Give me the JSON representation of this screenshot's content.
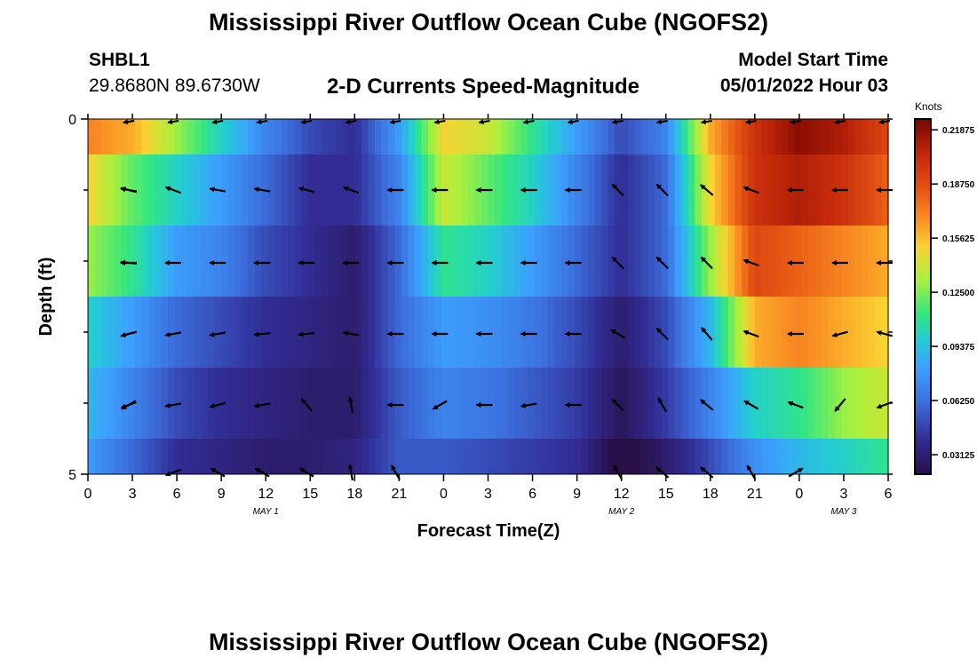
{
  "title": "Mississippi River Outflow Ocean Cube (NGOFS2)",
  "station": {
    "id": "SHBL1",
    "coords": "29.8680N  89.6730W"
  },
  "subtitle": "2-D Currents Speed-Magnitude",
  "model_start": {
    "label": "Model Start Time",
    "value": "05/01/2022 Hour 03"
  },
  "chart_data": {
    "type": "heatmap",
    "title": "2-D Currents Speed-Magnitude",
    "xlabel": "Forecast Time(Z)",
    "ylabel": "Depth (ft)",
    "x_tick_labels": [
      "0",
      "3",
      "6",
      "9",
      "12",
      "15",
      "18",
      "21",
      "0",
      "3",
      "6",
      "9",
      "12",
      "15",
      "18",
      "21",
      "0",
      "3",
      "6"
    ],
    "date_labels": [
      {
        "label": "MAY 1",
        "hour": 12
      },
      {
        "label": "MAY 2",
        "hour": 36
      },
      {
        "label": "MAY 3",
        "hour": 51
      }
    ],
    "x_range_hours": [
      0,
      54
    ],
    "y_tick_labels": [
      "0",
      "5"
    ],
    "ylim": [
      0,
      5
    ],
    "colorbar": {
      "label": "Knots",
      "ticks": [
        "0.21875",
        "0.18750",
        "0.15625",
        "0.12500",
        "0.09375",
        "0.06250",
        "0.03125"
      ],
      "range": [
        0.02,
        0.225
      ]
    },
    "depth_layers": [
      {
        "name": "layer-1",
        "values": [
          0.17,
          0.16,
          0.13,
          0.1,
          0.07,
          0.05,
          0.04,
          0.08,
          0.15,
          0.14,
          0.11,
          0.08,
          0.05,
          0.07,
          0.16,
          0.2,
          0.22,
          0.21,
          0.19
        ]
      },
      {
        "name": "layer-2",
        "values": [
          0.15,
          0.12,
          0.1,
          0.08,
          0.06,
          0.04,
          0.04,
          0.07,
          0.14,
          0.12,
          0.1,
          0.07,
          0.04,
          0.06,
          0.15,
          0.2,
          0.21,
          0.2,
          0.18
        ]
      },
      {
        "name": "layer-3",
        "values": [
          0.13,
          0.11,
          0.08,
          0.07,
          0.05,
          0.04,
          0.03,
          0.06,
          0.11,
          0.1,
          0.08,
          0.06,
          0.04,
          0.06,
          0.13,
          0.19,
          0.18,
          0.17,
          0.16
        ]
      },
      {
        "name": "layer-4",
        "values": [
          0.1,
          0.08,
          0.06,
          0.05,
          0.04,
          0.035,
          0.03,
          0.06,
          0.08,
          0.075,
          0.065,
          0.05,
          0.03,
          0.05,
          0.09,
          0.16,
          0.17,
          0.16,
          0.15
        ]
      },
      {
        "name": "layer-5",
        "values": [
          0.09,
          0.07,
          0.05,
          0.04,
          0.035,
          0.03,
          0.03,
          0.055,
          0.07,
          0.065,
          0.055,
          0.045,
          0.025,
          0.045,
          0.07,
          0.1,
          0.11,
          0.13,
          0.14
        ]
      },
      {
        "name": "layer-6",
        "values": [
          0.08,
          0.06,
          0.04,
          0.035,
          0.03,
          0.03,
          0.035,
          0.055,
          0.055,
          0.05,
          0.045,
          0.04,
          0.015,
          0.03,
          0.05,
          0.075,
          0.09,
          0.1,
          0.11
        ]
      }
    ],
    "arrow_rows": [
      {
        "angles": [
          170,
          165,
          160,
          170,
          170,
          165,
          160,
          180,
          180,
          180,
          180,
          180,
          135,
          135,
          140,
          160,
          180,
          180,
          180
        ]
      },
      {
        "angles": [
          180,
          175,
          180,
          180,
          180,
          180,
          180,
          180,
          180,
          180,
          180,
          180,
          135,
          135,
          135,
          160,
          180,
          180,
          180
        ]
      },
      {
        "angles": [
          195,
          195,
          190,
          190,
          185,
          185,
          170,
          180,
          180,
          180,
          180,
          180,
          150,
          135,
          130,
          160,
          180,
          195,
          165
        ]
      },
      {
        "angles": [
          210,
          200,
          190,
          195,
          190,
          130,
          100,
          180,
          210,
          180,
          190,
          180,
          135,
          120,
          140,
          150,
          160,
          230,
          200
        ]
      },
      {
        "angles": [
          null,
          null,
          200,
          150,
          150,
          150,
          100,
          120,
          null,
          null,
          null,
          null,
          120,
          140,
          140,
          120,
          30,
          null,
          null
        ]
      }
    ]
  }
}
